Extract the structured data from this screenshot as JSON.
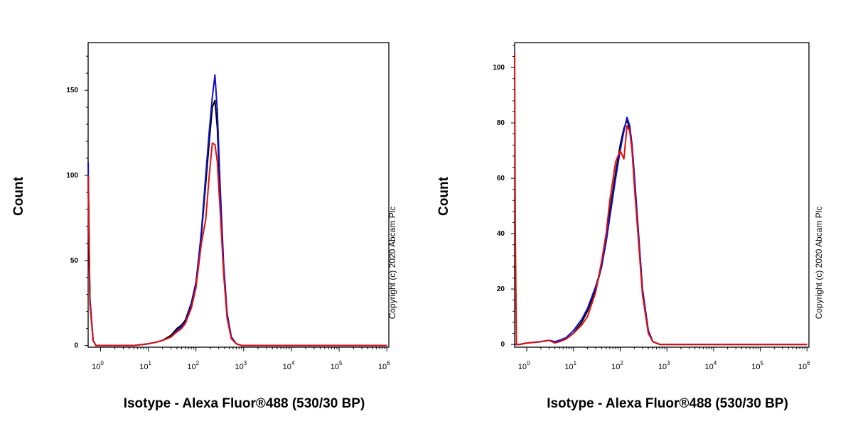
{
  "chart_data": [
    {
      "type": "line",
      "xlabel": "Isotype - Alexa Fluor®488 (530/30 BP)",
      "ylabel": "Count",
      "x_scale": "log",
      "x_ticks": [
        "10^0",
        "10^1",
        "10^2",
        "10^3",
        "10^4",
        "10^5",
        "10^6"
      ],
      "xlim": [
        0.55,
        1100000
      ],
      "ylim": [
        -1,
        178
      ],
      "y_ticks": [
        0,
        50,
        100,
        150
      ],
      "annotation": "Copyright (c) 2020 Abcam Plc",
      "grid": false,
      "series": [
        {
          "color": "#000000",
          "x": [
            0.55,
            0.6,
            0.7,
            0.8,
            1,
            2,
            5,
            10,
            15,
            20,
            30,
            40,
            50,
            60,
            80,
            100,
            130,
            160,
            190,
            220,
            250,
            280,
            320,
            380,
            450,
            550,
            700,
            900,
            2000,
            1000000
          ],
          "y": [
            100,
            25,
            3,
            0,
            0,
            0,
            0,
            1,
            2,
            3,
            6,
            10,
            12,
            15,
            25,
            37,
            65,
            95,
            120,
            140,
            144,
            128,
            90,
            45,
            18,
            5,
            1,
            0,
            0,
            0
          ]
        },
        {
          "color": "#1111cc",
          "x": [
            0.55,
            0.6,
            0.7,
            0.8,
            1,
            2,
            5,
            10,
            15,
            20,
            30,
            40,
            50,
            60,
            80,
            100,
            130,
            160,
            190,
            220,
            250,
            280,
            320,
            380,
            450,
            550,
            700,
            900,
            2000,
            1000000
          ],
          "y": [
            108,
            28,
            3,
            0,
            0,
            0,
            0,
            1,
            2,
            3,
            5,
            9,
            11,
            14,
            24,
            36,
            67,
            100,
            126,
            146,
            159,
            138,
            95,
            48,
            19,
            5,
            1,
            0,
            0,
            0
          ]
        },
        {
          "color": "#dd1111",
          "x": [
            0.55,
            0.6,
            0.7,
            0.8,
            1,
            2,
            5,
            10,
            15,
            20,
            30,
            40,
            50,
            60,
            80,
            100,
            130,
            160,
            190,
            220,
            250,
            280,
            320,
            380,
            450,
            550,
            700,
            900,
            2000,
            1000000
          ],
          "y": [
            100,
            25,
            3,
            0,
            0,
            0,
            0,
            1,
            2,
            3,
            5,
            8,
            10,
            13,
            22,
            34,
            60,
            74,
            100,
            119,
            118,
            108,
            80,
            42,
            16,
            4,
            1,
            0,
            0,
            0
          ]
        }
      ]
    },
    {
      "type": "line",
      "xlabel": "Isotype - Alexa Fluor®488 (530/30 BP)",
      "ylabel": "Count",
      "x_scale": "log",
      "x_ticks": [
        "10^0",
        "10^1",
        "10^2",
        "10^3",
        "10^4",
        "10^5",
        "10^6"
      ],
      "xlim": [
        0.55,
        1100000
      ],
      "ylim": [
        -1,
        109
      ],
      "y_ticks": [
        0,
        20,
        40,
        60,
        80,
        100
      ],
      "annotation": "Copyright (c) 2020 Abcam Plc",
      "grid": false,
      "series": [
        {
          "color": "#000000",
          "x": [
            0.55,
            0.6,
            0.7,
            1,
            2,
            3,
            4,
            5,
            7,
            10,
            15,
            20,
            30,
            40,
            50,
            60,
            80,
            100,
            120,
            140,
            160,
            180,
            200,
            250,
            300,
            400,
            500,
            700,
            1000000
          ],
          "y": [
            0,
            0,
            0,
            0.5,
            1,
            1.5,
            1,
            1,
            2,
            4,
            8,
            12,
            20,
            28,
            38,
            48,
            62,
            72,
            78,
            81,
            78,
            70,
            60,
            38,
            20,
            5,
            1,
            0,
            0
          ]
        },
        {
          "color": "#1111cc",
          "x": [
            0.55,
            0.6,
            0.7,
            1,
            2,
            3,
            4,
            5,
            7,
            10,
            15,
            20,
            30,
            40,
            50,
            60,
            80,
            100,
            120,
            140,
            160,
            180,
            200,
            250,
            300,
            400,
            500,
            700,
            1000000
          ],
          "y": [
            0,
            0,
            0,
            0.5,
            1,
            1.5,
            1,
            1.5,
            2.5,
            5,
            9,
            13,
            21,
            28,
            37,
            46,
            60,
            70,
            77,
            82,
            79,
            72,
            62,
            39,
            20,
            5,
            1,
            0,
            0
          ]
        },
        {
          "color": "#dd1111",
          "x": [
            0.55,
            0.57,
            0.6,
            0.7,
            1,
            2,
            3,
            4,
            5,
            7,
            10,
            15,
            20,
            30,
            40,
            50,
            60,
            80,
            100,
            120,
            140,
            160,
            180,
            200,
            250,
            300,
            400,
            500,
            700,
            1000000
          ],
          "y": [
            105,
            40,
            0,
            0,
            0.5,
            1,
            1.5,
            0.5,
            1,
            2,
            4,
            7,
            10,
            19,
            30,
            40,
            52,
            66,
            70,
            67,
            79,
            77,
            70,
            58,
            36,
            18,
            4,
            1,
            0,
            0
          ]
        }
      ]
    }
  ]
}
